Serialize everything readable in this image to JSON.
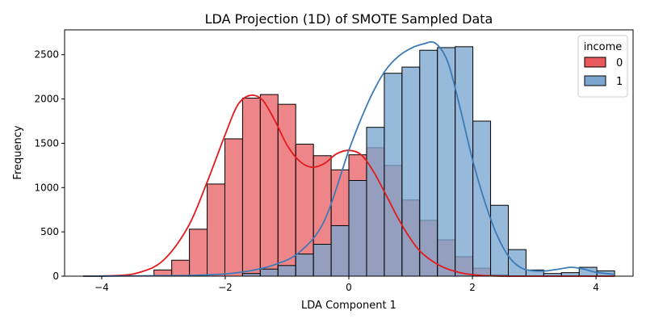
{
  "chart_data": {
    "type": "bar",
    "subtype": "histogram-with-kde",
    "title": "LDA Projection (1D) of SMOTE Sampled Data",
    "xlabel": "LDA Component 1",
    "ylabel": "Frequency",
    "xlim": [
      -4.6,
      4.6
    ],
    "ylim": [
      0,
      2780
    ],
    "xticks": [
      -4,
      -2,
      0,
      2,
      4
    ],
    "yticks": [
      0,
      500,
      1000,
      1500,
      2000,
      2500
    ],
    "grid": false,
    "legend": {
      "title": "income",
      "placement": "top-right"
    },
    "bins": {
      "start": -4.3,
      "width": 0.2867,
      "count": 30
    },
    "series": [
      {
        "name": "0",
        "color": "#e8585c",
        "line_color": "#e31a1c",
        "values": [
          0,
          0,
          0,
          0,
          70,
          180,
          530,
          1040,
          1550,
          2010,
          2050,
          1940,
          1490,
          1360,
          1200,
          1370,
          1450,
          1250,
          860,
          630,
          410,
          220,
          90,
          15,
          5,
          0,
          0,
          0,
          0,
          0
        ],
        "kde_x": [
          -4.3,
          -3.8,
          -3.4,
          -3.0,
          -2.6,
          -2.3,
          -2.0,
          -1.8,
          -1.6,
          -1.4,
          -1.2,
          -1.0,
          -0.8,
          -0.6,
          -0.4,
          -0.2,
          0.0,
          0.2,
          0.4,
          0.6,
          0.8,
          1.0,
          1.2,
          1.5,
          1.8,
          2.1,
          2.5,
          3.0,
          3.5,
          4.3
        ],
        "kde_y": [
          0,
          5,
          40,
          180,
          560,
          1050,
          1600,
          1930,
          2040,
          1990,
          1760,
          1480,
          1300,
          1230,
          1270,
          1380,
          1420,
          1370,
          1180,
          920,
          650,
          420,
          250,
          110,
          40,
          10,
          0,
          0,
          0,
          0
        ]
      },
      {
        "name": "1",
        "color": "#7ba6d0",
        "line_color": "#3b7bb8",
        "values": [
          0,
          0,
          0,
          0,
          0,
          0,
          0,
          0,
          0,
          30,
          80,
          120,
          250,
          360,
          570,
          1080,
          1680,
          2290,
          2360,
          2550,
          2580,
          2590,
          1750,
          800,
          300,
          70,
          30,
          40,
          100,
          60
        ],
        "kde_x": [
          -4.3,
          -3.0,
          -2.5,
          -2.0,
          -1.6,
          -1.2,
          -0.8,
          -0.4,
          0.0,
          0.2,
          0.4,
          0.6,
          0.8,
          1.0,
          1.2,
          1.4,
          1.6,
          1.8,
          2.0,
          2.2,
          2.4,
          2.6,
          2.8,
          3.0,
          3.2,
          3.4,
          3.6,
          3.8,
          4.0,
          4.3
        ],
        "kde_y": [
          0,
          5,
          10,
          25,
          60,
          130,
          270,
          620,
          1420,
          1780,
          2090,
          2330,
          2480,
          2570,
          2620,
          2630,
          2420,
          1900,
          1320,
          840,
          460,
          210,
          90,
          60,
          60,
          80,
          100,
          80,
          45,
          20
        ]
      }
    ]
  }
}
